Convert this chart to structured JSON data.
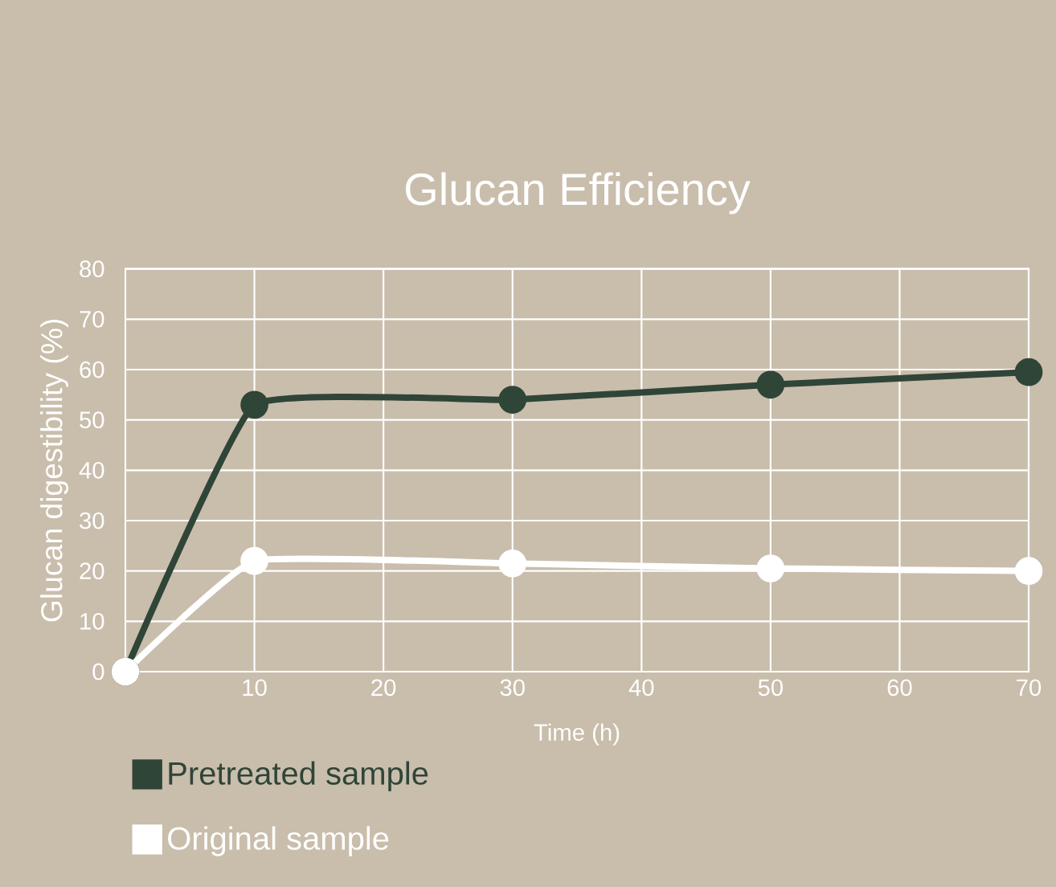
{
  "chart_data": {
    "type": "line",
    "title": "Glucan Efficiency",
    "xlabel": "Time (h)",
    "ylabel": "Glucan digestibility (%)",
    "xlim": [
      0,
      70
    ],
    "xticks": [
      10,
      20,
      30,
      40,
      50,
      60,
      70
    ],
    "ylim": [
      0,
      80
    ],
    "yticks": [
      0,
      10,
      20,
      30,
      40,
      50,
      60,
      70,
      80
    ],
    "grid": true,
    "legend": "bottom left",
    "marker": "circle",
    "line_style": "solid",
    "series": [
      {
        "name": "Pretreated sample",
        "color": "#2f4538",
        "x": [
          0,
          10,
          30,
          50,
          70
        ],
        "values": [
          0,
          53,
          54,
          57,
          59.5
        ]
      },
      {
        "name": "Original sample",
        "color": "#ffffff",
        "x": [
          0,
          10,
          30,
          50,
          70
        ],
        "values": [
          0,
          22,
          21.5,
          20.5,
          20
        ]
      }
    ]
  }
}
